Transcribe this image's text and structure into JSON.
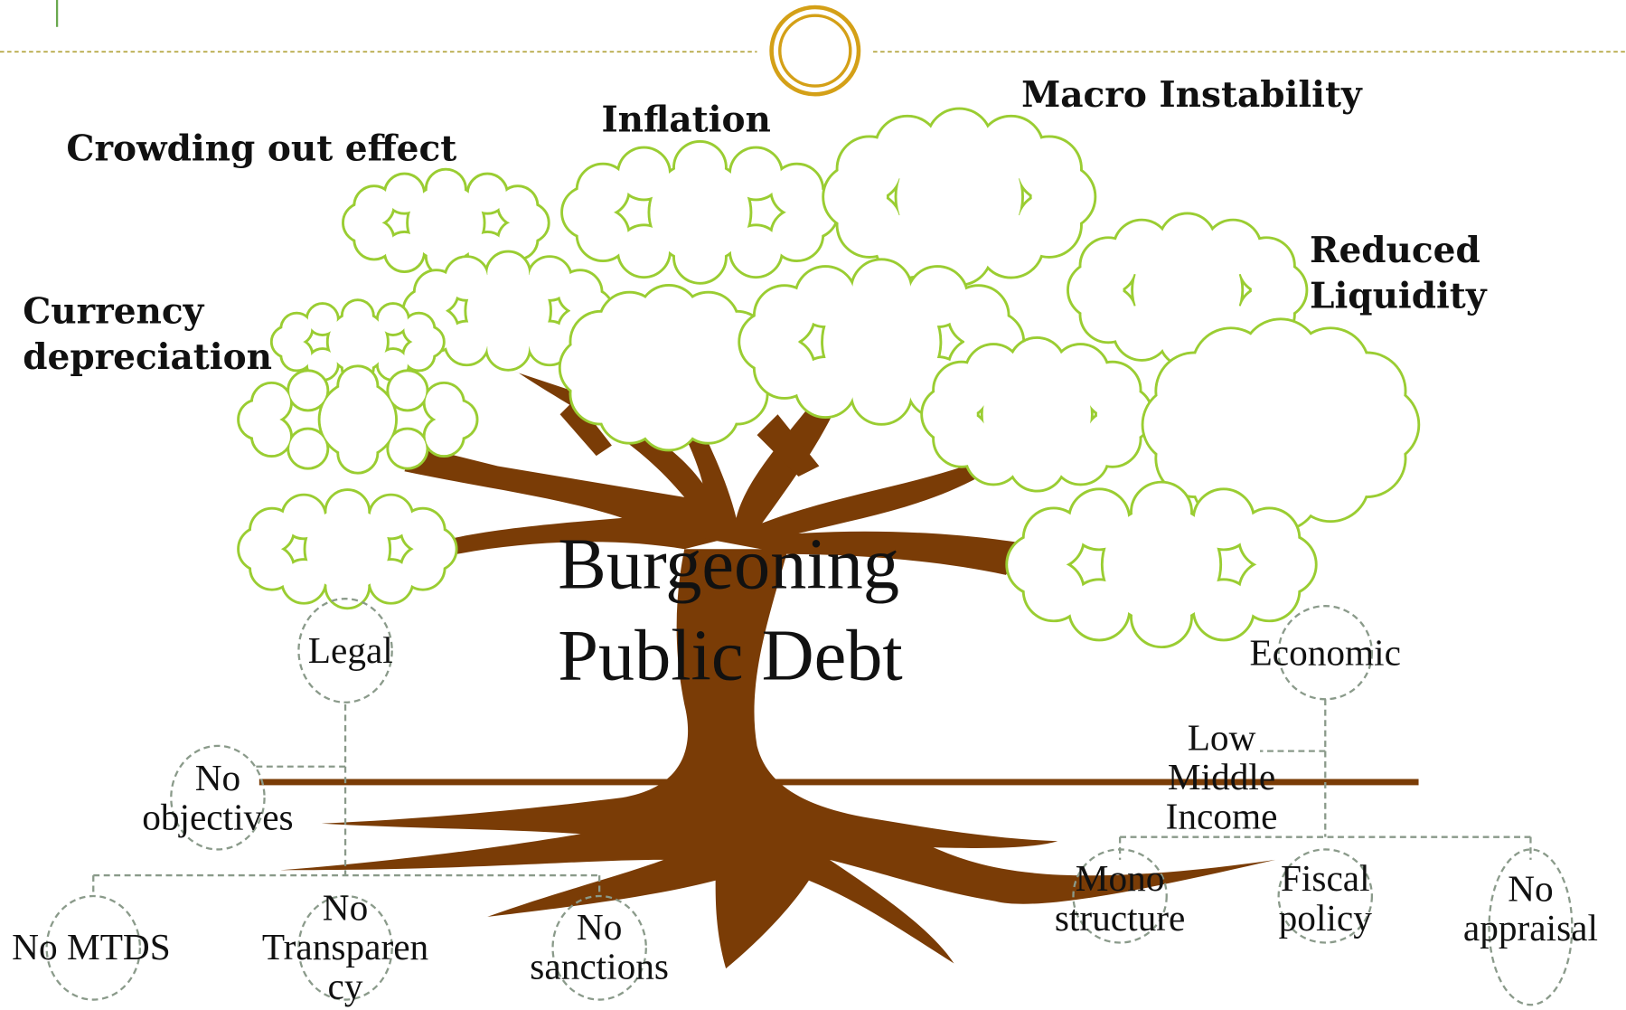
{
  "center": {
    "lines": [
      "Burgeoning",
      "Public Debt"
    ]
  },
  "effects": [
    {
      "lines": [
        "Crowding out effect"
      ]
    },
    {
      "lines": [
        "Inflation"
      ]
    },
    {
      "lines": [
        "Macro Instability"
      ]
    },
    {
      "lines": [
        "Reduced",
        "Liquidity"
      ]
    },
    {
      "lines": [
        "Currency",
        "depreciation"
      ]
    }
  ],
  "cause_groups": [
    {
      "label": "Legal",
      "causes": [
        {
          "lines": [
            "No",
            "objectives"
          ]
        },
        {
          "lines": [
            "No MTDS"
          ]
        },
        {
          "lines": [
            "No",
            "Transparen",
            "cy"
          ]
        },
        {
          "lines": [
            "No",
            "sanctions"
          ]
        }
      ]
    },
    {
      "label": "Economic",
      "causes": [
        {
          "lines": [
            "Low",
            "Middle",
            "Income"
          ]
        },
        {
          "lines": [
            "Mono",
            "structure"
          ]
        },
        {
          "lines": [
            "Fiscal",
            "policy"
          ]
        },
        {
          "lines": [
            "No",
            "appraisal"
          ]
        }
      ]
    }
  ]
}
